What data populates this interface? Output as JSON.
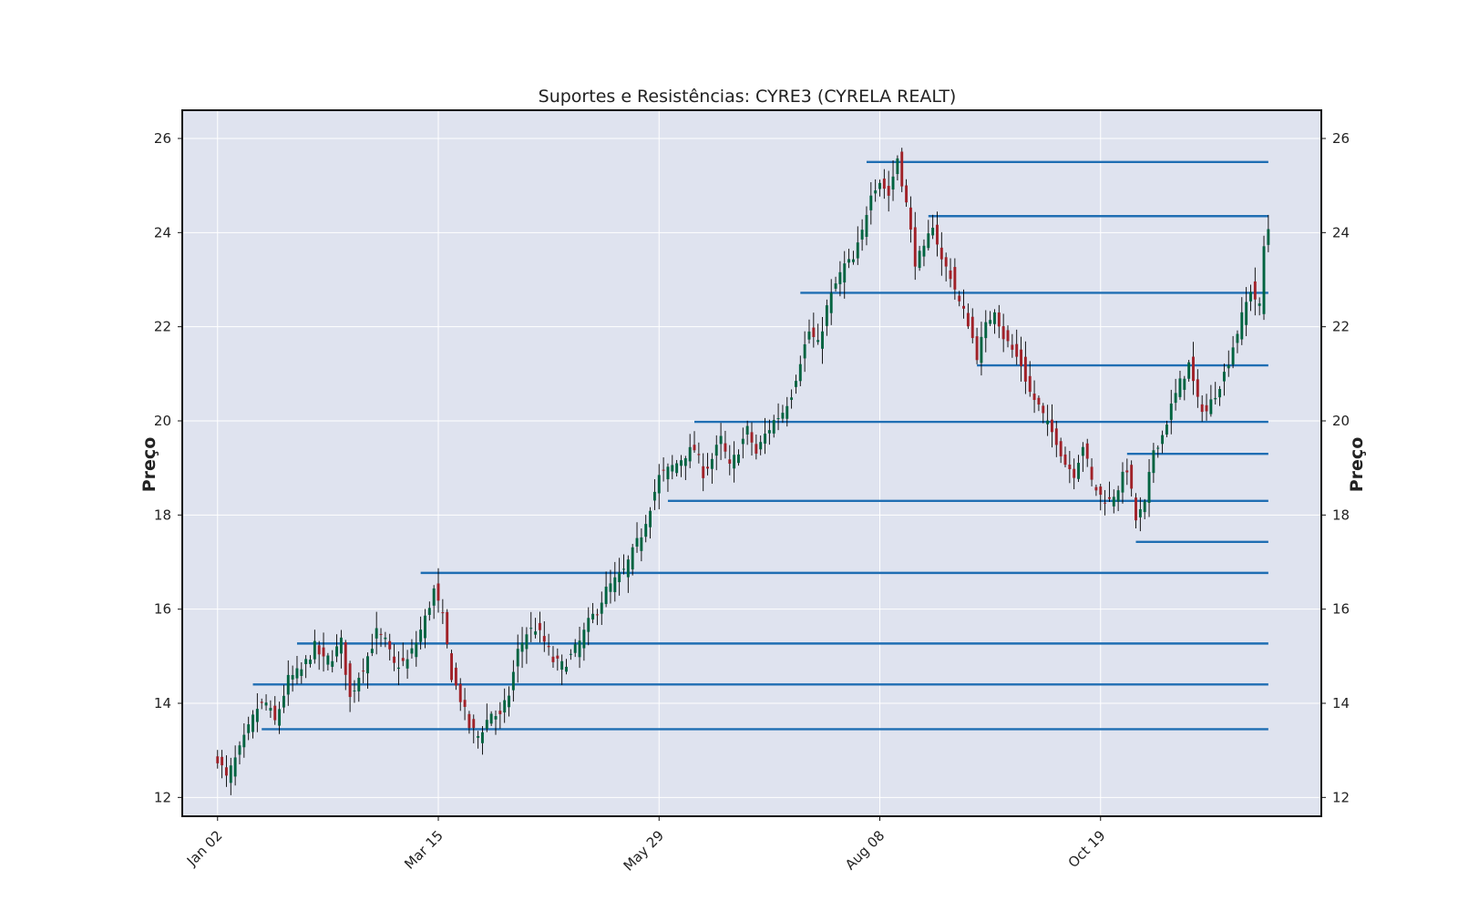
{
  "chart_data": {
    "type": "candlestick",
    "title": "Suportes e Resistências: CYRE3 (CYRELA REALT)",
    "ylabel_left": "Preço",
    "ylabel_right": "Preço",
    "xlabel": "",
    "ylim": [
      11.6,
      26.6
    ],
    "yticks": [
      12,
      14,
      16,
      18,
      20,
      22,
      24,
      26
    ],
    "x_range": [
      -8,
      250
    ],
    "xticks": [
      {
        "index": 0,
        "label": "Jan 02"
      },
      {
        "index": 50,
        "label": "Mar 15"
      },
      {
        "index": 100,
        "label": "May 29"
      },
      {
        "index": 150,
        "label": "Aug 08"
      },
      {
        "index": 200,
        "label": "Oct 19"
      }
    ],
    "grid": true,
    "colors": {
      "up": "#006340",
      "down": "#a02128",
      "wick": "#000000",
      "level": "#1f6eb3",
      "plot_bg": "#dfe3ef",
      "grid": "#ffffff"
    },
    "levels": [
      {
        "start_index": 147,
        "price": 25.5
      },
      {
        "start_index": 161,
        "price": 24.35
      },
      {
        "start_index": 132,
        "price": 22.72
      },
      {
        "start_index": 172,
        "price": 21.18
      },
      {
        "start_index": 108,
        "price": 19.98
      },
      {
        "start_index": 206,
        "price": 19.3
      },
      {
        "start_index": 102,
        "price": 18.3
      },
      {
        "start_index": 208,
        "price": 17.43
      },
      {
        "start_index": 46,
        "price": 16.77
      },
      {
        "start_index": 18,
        "price": 15.27
      },
      {
        "start_index": 8,
        "price": 14.4
      },
      {
        "start_index": 10,
        "price": 13.45
      }
    ],
    "level_end_index": 238,
    "anchors": [
      [
        0,
        12.85
      ],
      [
        2,
        12.4
      ],
      [
        5,
        13.0
      ],
      [
        9,
        13.9
      ],
      [
        11,
        14.0
      ],
      [
        13,
        13.6
      ],
      [
        16,
        14.5
      ],
      [
        19,
        14.7
      ],
      [
        22,
        15.2
      ],
      [
        24,
        14.9
      ],
      [
        26,
        15.0
      ],
      [
        28,
        15.3
      ],
      [
        30,
        14.1
      ],
      [
        32,
        14.6
      ],
      [
        34,
        15.0
      ],
      [
        36,
        15.5
      ],
      [
        38,
        15.3
      ],
      [
        40,
        14.8
      ],
      [
        43,
        14.9
      ],
      [
        45,
        15.3
      ],
      [
        47,
        15.8
      ],
      [
        49,
        16.4
      ],
      [
        51,
        15.8
      ],
      [
        53,
        14.6
      ],
      [
        55,
        14.1
      ],
      [
        57,
        13.5
      ],
      [
        59,
        13.3
      ],
      [
        62,
        13.8
      ],
      [
        64,
        13.7
      ],
      [
        66,
        14.2
      ],
      [
        68,
        15.1
      ],
      [
        70,
        15.5
      ],
      [
        72,
        15.6
      ],
      [
        74,
        15.3
      ],
      [
        76,
        14.9
      ],
      [
        78,
        14.8
      ],
      [
        80,
        15.0
      ],
      [
        82,
        15.3
      ],
      [
        84,
        15.7
      ],
      [
        86,
        16.0
      ],
      [
        88,
        16.4
      ],
      [
        90,
        16.6
      ],
      [
        92,
        16.8
      ],
      [
        94,
        17.2
      ],
      [
        96,
        17.6
      ],
      [
        98,
        18.2
      ],
      [
        100,
        18.8
      ],
      [
        102,
        18.95
      ],
      [
        104,
        19.1
      ],
      [
        106,
        19.3
      ],
      [
        108,
        19.4
      ],
      [
        110,
        18.9
      ],
      [
        112,
        19.2
      ],
      [
        114,
        19.6
      ],
      [
        116,
        19.0
      ],
      [
        118,
        19.4
      ],
      [
        120,
        19.8
      ],
      [
        122,
        19.3
      ],
      [
        124,
        19.7
      ],
      [
        126,
        20.0
      ],
      [
        128,
        20.2
      ],
      [
        130,
        20.6
      ],
      [
        132,
        21.3
      ],
      [
        134,
        21.9
      ],
      [
        136,
        21.6
      ],
      [
        138,
        22.4
      ],
      [
        140,
        22.9
      ],
      [
        142,
        23.3
      ],
      [
        144,
        23.4
      ],
      [
        146,
        24.0
      ],
      [
        148,
        24.9
      ],
      [
        150,
        25.1
      ],
      [
        152,
        24.8
      ],
      [
        154,
        25.6
      ],
      [
        156,
        24.6
      ],
      [
        158,
        23.4
      ],
      [
        160,
        23.6
      ],
      [
        162,
        24.2
      ],
      [
        164,
        23.4
      ],
      [
        166,
        23.1
      ],
      [
        168,
        22.5
      ],
      [
        170,
        22.1
      ],
      [
        172,
        21.4
      ],
      [
        174,
        22.0
      ],
      [
        176,
        22.4
      ],
      [
        178,
        21.8
      ],
      [
        180,
        21.5
      ],
      [
        182,
        21.2
      ],
      [
        184,
        20.6
      ],
      [
        186,
        20.3
      ],
      [
        188,
        19.9
      ],
      [
        190,
        19.6
      ],
      [
        192,
        19.1
      ],
      [
        194,
        18.9
      ],
      [
        196,
        19.5
      ],
      [
        198,
        18.7
      ],
      [
        200,
        18.4
      ],
      [
        202,
        18.3
      ],
      [
        204,
        18.6
      ],
      [
        206,
        19.0
      ],
      [
        208,
        17.9
      ],
      [
        210,
        18.2
      ],
      [
        212,
        19.4
      ],
      [
        214,
        19.7
      ],
      [
        216,
        20.3
      ],
      [
        218,
        20.8
      ],
      [
        220,
        21.2
      ],
      [
        222,
        20.4
      ],
      [
        224,
        20.2
      ],
      [
        226,
        20.6
      ],
      [
        228,
        21.0
      ],
      [
        230,
        21.6
      ],
      [
        232,
        22.2
      ],
      [
        234,
        22.8
      ],
      [
        236,
        22.4
      ],
      [
        237,
        23.7
      ],
      [
        238,
        24.1
      ]
    ]
  }
}
